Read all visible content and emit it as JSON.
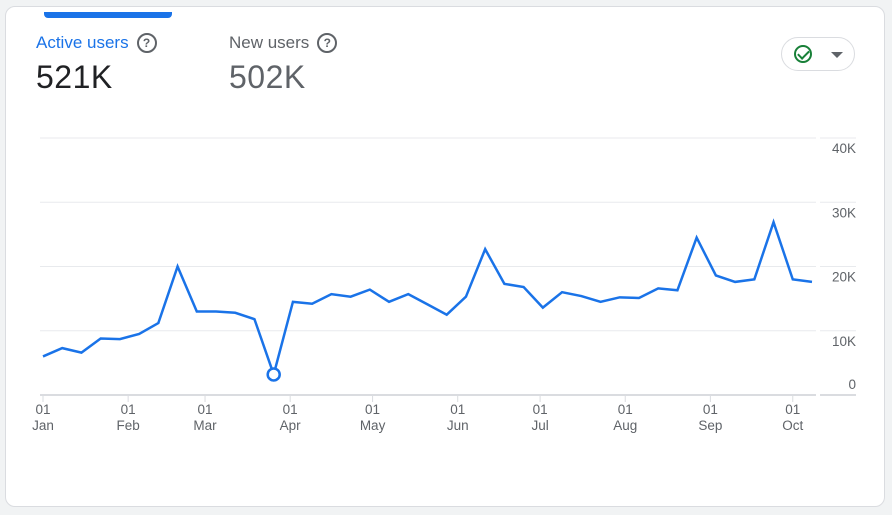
{
  "metrics": [
    {
      "label": "Active users",
      "value": "521K",
      "icon": "help-circle-icon"
    },
    {
      "label": "New users",
      "value": "502K",
      "icon": "help-circle-icon"
    }
  ],
  "status_button": {
    "icon": "check-circle-icon",
    "caret": "arrow-drop-down-icon",
    "check_color": "#188038"
  },
  "colors": {
    "line": "#1a73e8",
    "grid": "#e8eaed"
  },
  "chart_data": {
    "type": "line",
    "title": "Active users",
    "xlabel": "",
    "ylabel": "",
    "ylim": [
      0,
      40000
    ],
    "grid": true,
    "x_unit": "days since Jan 01 (weekly points)",
    "x": [
      0,
      7,
      14,
      21,
      28,
      35,
      42,
      49,
      56,
      63,
      70,
      77,
      84,
      91,
      98,
      105,
      112,
      119,
      126,
      133,
      140,
      147,
      154,
      161,
      168,
      175,
      182,
      189,
      196,
      203,
      210,
      217,
      224,
      231,
      238,
      245,
      252,
      259,
      266,
      273,
      280
    ],
    "series": [
      {
        "name": "Active users",
        "values": [
          6000,
          7300,
          6600,
          8800,
          8700,
          9500,
          11200,
          20000,
          13000,
          13000,
          12800,
          11800,
          3200,
          14500,
          14200,
          15700,
          15300,
          16400,
          14500,
          15700,
          14100,
          12500,
          15300,
          22700,
          17300,
          16800,
          13600,
          16000,
          15400,
          14500,
          15200,
          15100,
          16600,
          16300,
          24500,
          18600,
          17600,
          18000,
          26900,
          18000,
          17600
        ]
      }
    ],
    "highlight_point_index": 12,
    "y_ticks": [
      {
        "value": 40000,
        "label": "40K"
      },
      {
        "value": 30000,
        "label": "30K"
      },
      {
        "value": 20000,
        "label": "20K"
      },
      {
        "value": 10000,
        "label": "10K"
      },
      {
        "value": 0,
        "label": "0"
      }
    ],
    "x_ticks": [
      {
        "value": 0,
        "day": "01",
        "month": "Jan"
      },
      {
        "value": 31,
        "day": "01",
        "month": "Feb"
      },
      {
        "value": 59,
        "day": "01",
        "month": "Mar"
      },
      {
        "value": 90,
        "day": "01",
        "month": "Apr"
      },
      {
        "value": 120,
        "day": "01",
        "month": "May"
      },
      {
        "value": 151,
        "day": "01",
        "month": "Jun"
      },
      {
        "value": 181,
        "day": "01",
        "month": "Jul"
      },
      {
        "value": 212,
        "day": "01",
        "month": "Aug"
      },
      {
        "value": 243,
        "day": "01",
        "month": "Sep"
      },
      {
        "value": 273,
        "day": "01",
        "month": "Oct"
      }
    ]
  }
}
